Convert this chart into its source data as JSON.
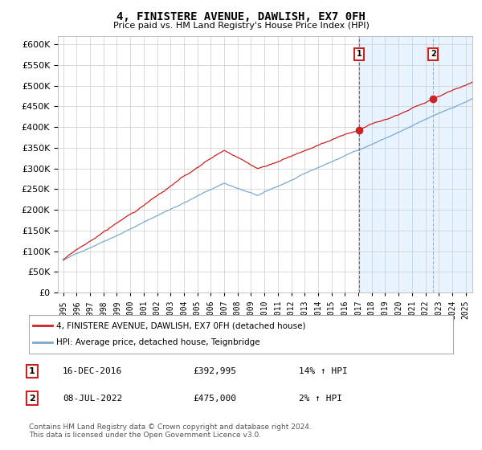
{
  "title": "4, FINISTERE AVENUE, DAWLISH, EX7 0FH",
  "subtitle": "Price paid vs. HM Land Registry's House Price Index (HPI)",
  "ylim": [
    0,
    620000
  ],
  "yticks": [
    0,
    50000,
    100000,
    150000,
    200000,
    250000,
    300000,
    350000,
    400000,
    450000,
    500000,
    550000,
    600000
  ],
  "hpi_color": "#7aaad0",
  "sale_color": "#cc2222",
  "marker2_vline_color": "#7aaad0",
  "shade_color": "#ddeeff",
  "idx1": 264,
  "idx2": 330,
  "year_start": 1995,
  "n_months": 372,
  "seed_hpi": 42,
  "seed_sale": 17,
  "marker1_label": "16-DEC-2016",
  "marker1_price": "£392,995",
  "marker1_pct": "14% ↑ HPI",
  "marker2_label": "08-JUL-2022",
  "marker2_price": "£475,000",
  "marker2_pct": "2% ↑ HPI",
  "legend_sale": "4, FINISTERE AVENUE, DAWLISH, EX7 0FH (detached house)",
  "legend_hpi": "HPI: Average price, detached house, Teignbridge",
  "footnote": "Contains HM Land Registry data © Crown copyright and database right 2024.\nThis data is licensed under the Open Government Licence v3.0."
}
